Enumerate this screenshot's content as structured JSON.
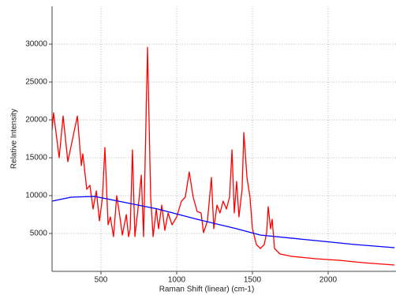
{
  "chart_data": {
    "type": "line",
    "xlabel": "Raman Shift (linear) (cm-1)",
    "ylabel": "Relative Intensity",
    "xlim": [
      177,
      2448
    ],
    "ylim": [
      0,
      35000
    ],
    "xticks": [
      500,
      1000,
      1500,
      2000
    ],
    "yticks": [
      5000,
      10000,
      15000,
      20000,
      25000,
      30000
    ],
    "grid": true,
    "series": [
      {
        "color": "#ff0000",
        "x": [
          177,
          187,
          224,
          250,
          281,
          344,
          370,
          380,
          406,
          427,
          448,
          469,
          490,
          510,
          526,
          547,
          562,
          583,
          604,
          625,
          641,
          667,
          682,
          693,
          708,
          724,
          750,
          766,
          781,
          807,
          828,
          844,
          865,
          880,
          901,
          922,
          943,
          969,
          1000,
          1031,
          1057,
          1083,
          1109,
          1135,
          1161,
          1177,
          1203,
          1229,
          1245,
          1266,
          1286,
          1307,
          1328,
          1349,
          1365,
          1380,
          1396,
          1411,
          1432,
          1443,
          1464,
          1484,
          1500,
          1526,
          1552,
          1578,
          1594,
          1604,
          1620,
          1630,
          1646,
          1682,
          1760,
          1917,
          2073,
          2229,
          2438
        ],
        "values": [
          18650,
          20940,
          15000,
          20520,
          14480,
          20520,
          13960,
          15520,
          10830,
          11350,
          8230,
          10630,
          6670,
          9790,
          16350,
          6150,
          7190,
          4580,
          10000,
          7190,
          4790,
          7500,
          4580,
          5630,
          16040,
          4580,
          9270,
          12710,
          4580,
          29580,
          9790,
          4580,
          8230,
          5630,
          8750,
          5420,
          7710,
          6150,
          7190,
          9270,
          9790,
          13130,
          9790,
          7920,
          7710,
          5100,
          6670,
          12400,
          5630,
          8750,
          7710,
          9270,
          8230,
          9790,
          16040,
          7710,
          11880,
          7190,
          10830,
          18330,
          12400,
          9790,
          5630,
          3540,
          3020,
          3540,
          5100,
          8540,
          5630,
          6880,
          3020,
          2290,
          1980,
          1670,
          1460,
          1150,
          830
        ]
      },
      {
        "color": "#0000ff",
        "x": [
          177,
          302,
          458,
          615,
          875,
          1135,
          1396,
          1552,
          1917,
          2177,
          2438
        ],
        "values": [
          9270,
          9790,
          9900,
          9270,
          8230,
          6880,
          5630,
          4790,
          4060,
          3540,
          3130
        ]
      }
    ]
  }
}
